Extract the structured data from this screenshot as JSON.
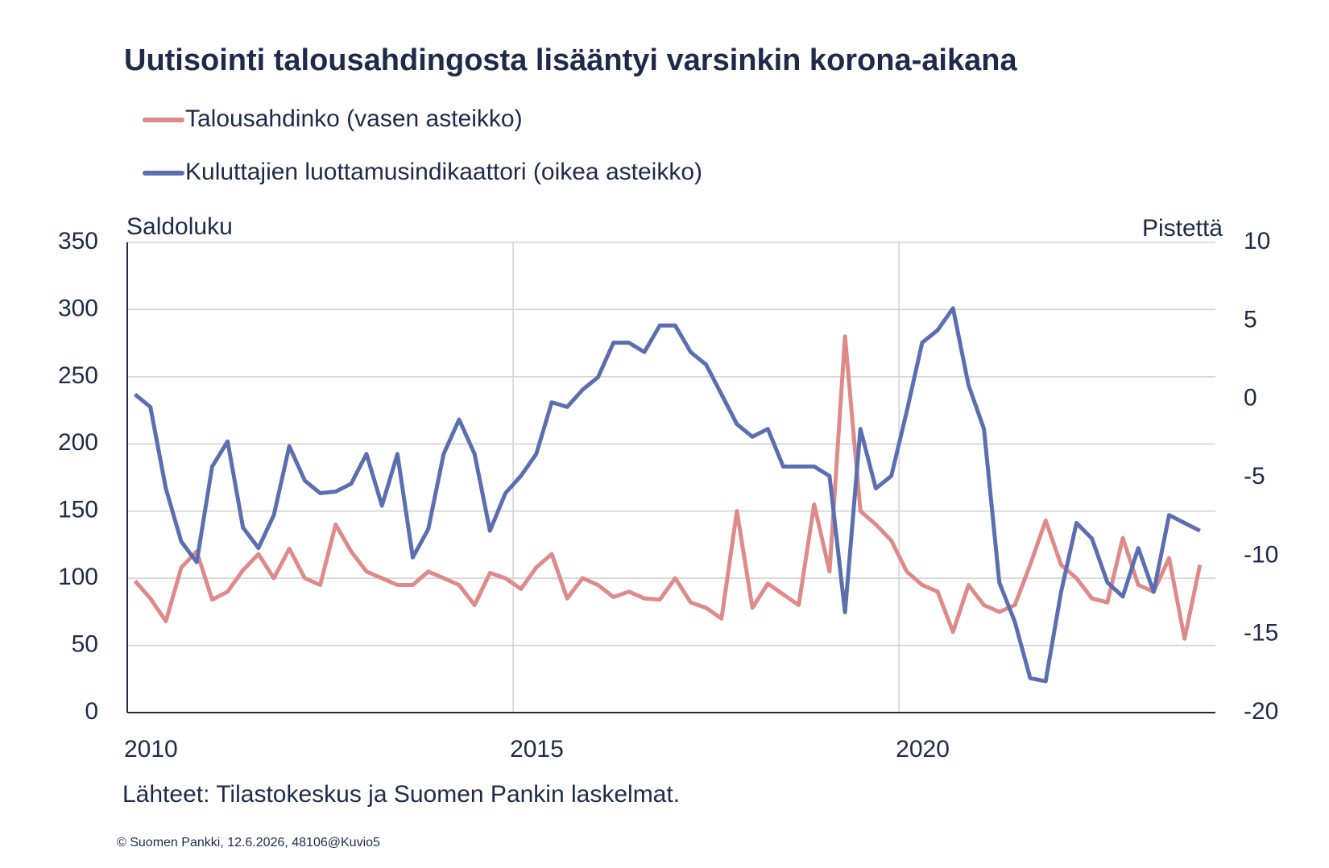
{
  "chart_data": {
    "type": "line",
    "title": "Uutisointi talousahdingosta lisääntyi varsinkin korona-aikana",
    "y_label": "Saldoluku",
    "y2_label": "Pistettä",
    "source": "Lähteet: Tilastokeskus ja Suomen Pankin laskelmat.",
    "footer": "© Suomen Pankki, 12.6.2026, 48106@Kuvio5",
    "x": [
      2010.1,
      2010.3,
      2010.5,
      2010.7,
      2010.9,
      2011.1,
      2011.3,
      2011.5,
      2011.7,
      2011.9,
      2012.1,
      2012.3,
      2012.5,
      2012.7,
      2012.9,
      2013.1,
      2013.3,
      2013.5,
      2013.7,
      2013.9,
      2014.1,
      2014.3,
      2014.5,
      2014.7,
      2014.9,
      2015.1,
      2015.3,
      2015.5,
      2015.7,
      2015.9,
      2016.1,
      2016.3,
      2016.5,
      2016.7,
      2016.9,
      2017.1,
      2017.3,
      2017.5,
      2017.7,
      2017.9,
      2018.1,
      2018.3,
      2018.5,
      2018.7,
      2018.9,
      2019.1,
      2019.3,
      2019.5,
      2019.7,
      2019.9,
      2020.1,
      2020.3,
      2020.5,
      2020.7,
      2020.9,
      2021.1,
      2021.3,
      2021.5,
      2021.7,
      2021.9,
      2022.1,
      2022.3,
      2022.5,
      2022.7,
      2022.9,
      2023.1,
      2023.3,
      2023.5,
      2023.7,
      2023.9
    ],
    "xlim": [
      2010,
      2024.1
    ],
    "xticks": [
      2010,
      2015,
      2020
    ],
    "ylim": [
      0,
      350
    ],
    "yticks": [
      0,
      50,
      100,
      150,
      200,
      250,
      300,
      350
    ],
    "y2lim": [
      -20,
      10
    ],
    "y2ticks": [
      -20,
      -15,
      -10,
      -5,
      0,
      5,
      10
    ],
    "grid": true,
    "series": [
      {
        "name": "Talousahdinko (vasen asteikko)",
        "color": "#de8a8a",
        "values": [
          98,
          85,
          68,
          108,
          120,
          84,
          90,
          106,
          118,
          100,
          122,
          100,
          95,
          140,
          120,
          105,
          100,
          95,
          95,
          105,
          100,
          95,
          80,
          104,
          100,
          92,
          108,
          118,
          85,
          100,
          95,
          86,
          90,
          85,
          84,
          100,
          82,
          78,
          70,
          150,
          78,
          96,
          88,
          80,
          155,
          105,
          280,
          150,
          140,
          128,
          105,
          95,
          90,
          60,
          95,
          80,
          75,
          80,
          110,
          143,
          110,
          100,
          85,
          82,
          130,
          95,
          90,
          115,
          55,
          110
        ]
      },
      {
        "name": "Kuluttajien luottamusindikaattori (oikea asteikko)",
        "color": "#5b6fb0",
        "axis": "y2",
        "values": [
          0.3,
          -0.5,
          -5.7,
          -9.1,
          -10.4,
          -4.3,
          -2.7,
          -8.2,
          -9.5,
          -7.4,
          -3.0,
          -5.2,
          -6.0,
          -5.9,
          -5.4,
          -3.5,
          -6.8,
          -3.5,
          -10.1,
          -8.3,
          -3.5,
          -1.3,
          -3.5,
          -8.4,
          -6.0,
          -4.9,
          -3.5,
          -0.2,
          -0.5,
          0.6,
          1.4,
          3.6,
          3.6,
          3.0,
          4.7,
          4.7,
          3.0,
          2.2,
          0.3,
          -1.6,
          -2.4,
          -1.9,
          -4.3,
          -4.3,
          -4.3,
          -4.9,
          -13.6,
          -1.9,
          -5.7,
          -4.9,
          -0.8,
          3.6,
          4.4,
          5.8,
          0.9,
          -1.9,
          -11.7,
          -14.2,
          -17.8,
          -18.0,
          -12.3,
          -7.9,
          -8.9,
          -11.7,
          -12.6,
          -9.5,
          -12.3,
          -7.4,
          -7.9,
          -8.4
        ]
      }
    ]
  }
}
